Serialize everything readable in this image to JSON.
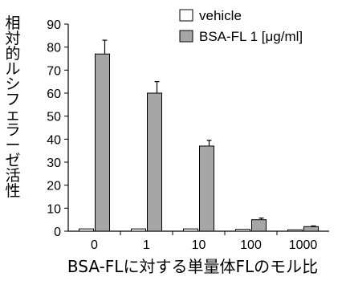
{
  "chart_data": {
    "type": "bar",
    "title": "",
    "xlabel": "BSA-FLに対する単量体FLのモル比",
    "ylabel": "相対的ルシフェラーゼ活性",
    "categories": [
      "0",
      "1",
      "10",
      "100",
      "1000"
    ],
    "ylim": [
      0,
      90
    ],
    "yticks": [
      0,
      10,
      20,
      30,
      40,
      50,
      60,
      70,
      80,
      90
    ],
    "grid": false,
    "legend_position": "top-right",
    "series": [
      {
        "name": "vehicle",
        "values": [
          1,
          1,
          1,
          0.8,
          0.6
        ],
        "errors": [
          0,
          0,
          0,
          0,
          0
        ],
        "color": "#ffffff"
      },
      {
        "name": "BSA-FL 1 [μg/ml]",
        "values": [
          77,
          60,
          37,
          5,
          2
        ],
        "errors": [
          6,
          5,
          2.5,
          0.7,
          0.3
        ],
        "color": "#a6a6a6"
      }
    ]
  }
}
